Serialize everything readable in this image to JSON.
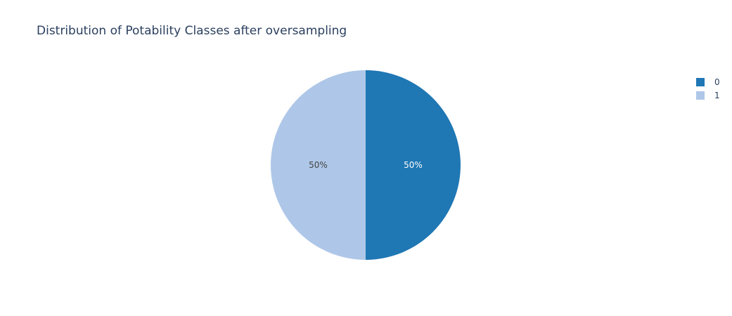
{
  "chart_data": {
    "type": "pie",
    "title": "Distribution of Potability Classes after oversampling",
    "labels": [
      "0",
      "1"
    ],
    "values": [
      50,
      50
    ],
    "percent_labels": [
      "50%",
      "50%"
    ],
    "colors": [
      "#1f77b4",
      "#aec7e8"
    ],
    "label_colors": [
      "#ffffff",
      "#444444"
    ],
    "direction": "clockwise",
    "start_angle_deg": 90,
    "legend": {
      "position": "top-right",
      "items": [
        "0",
        "1"
      ]
    }
  }
}
